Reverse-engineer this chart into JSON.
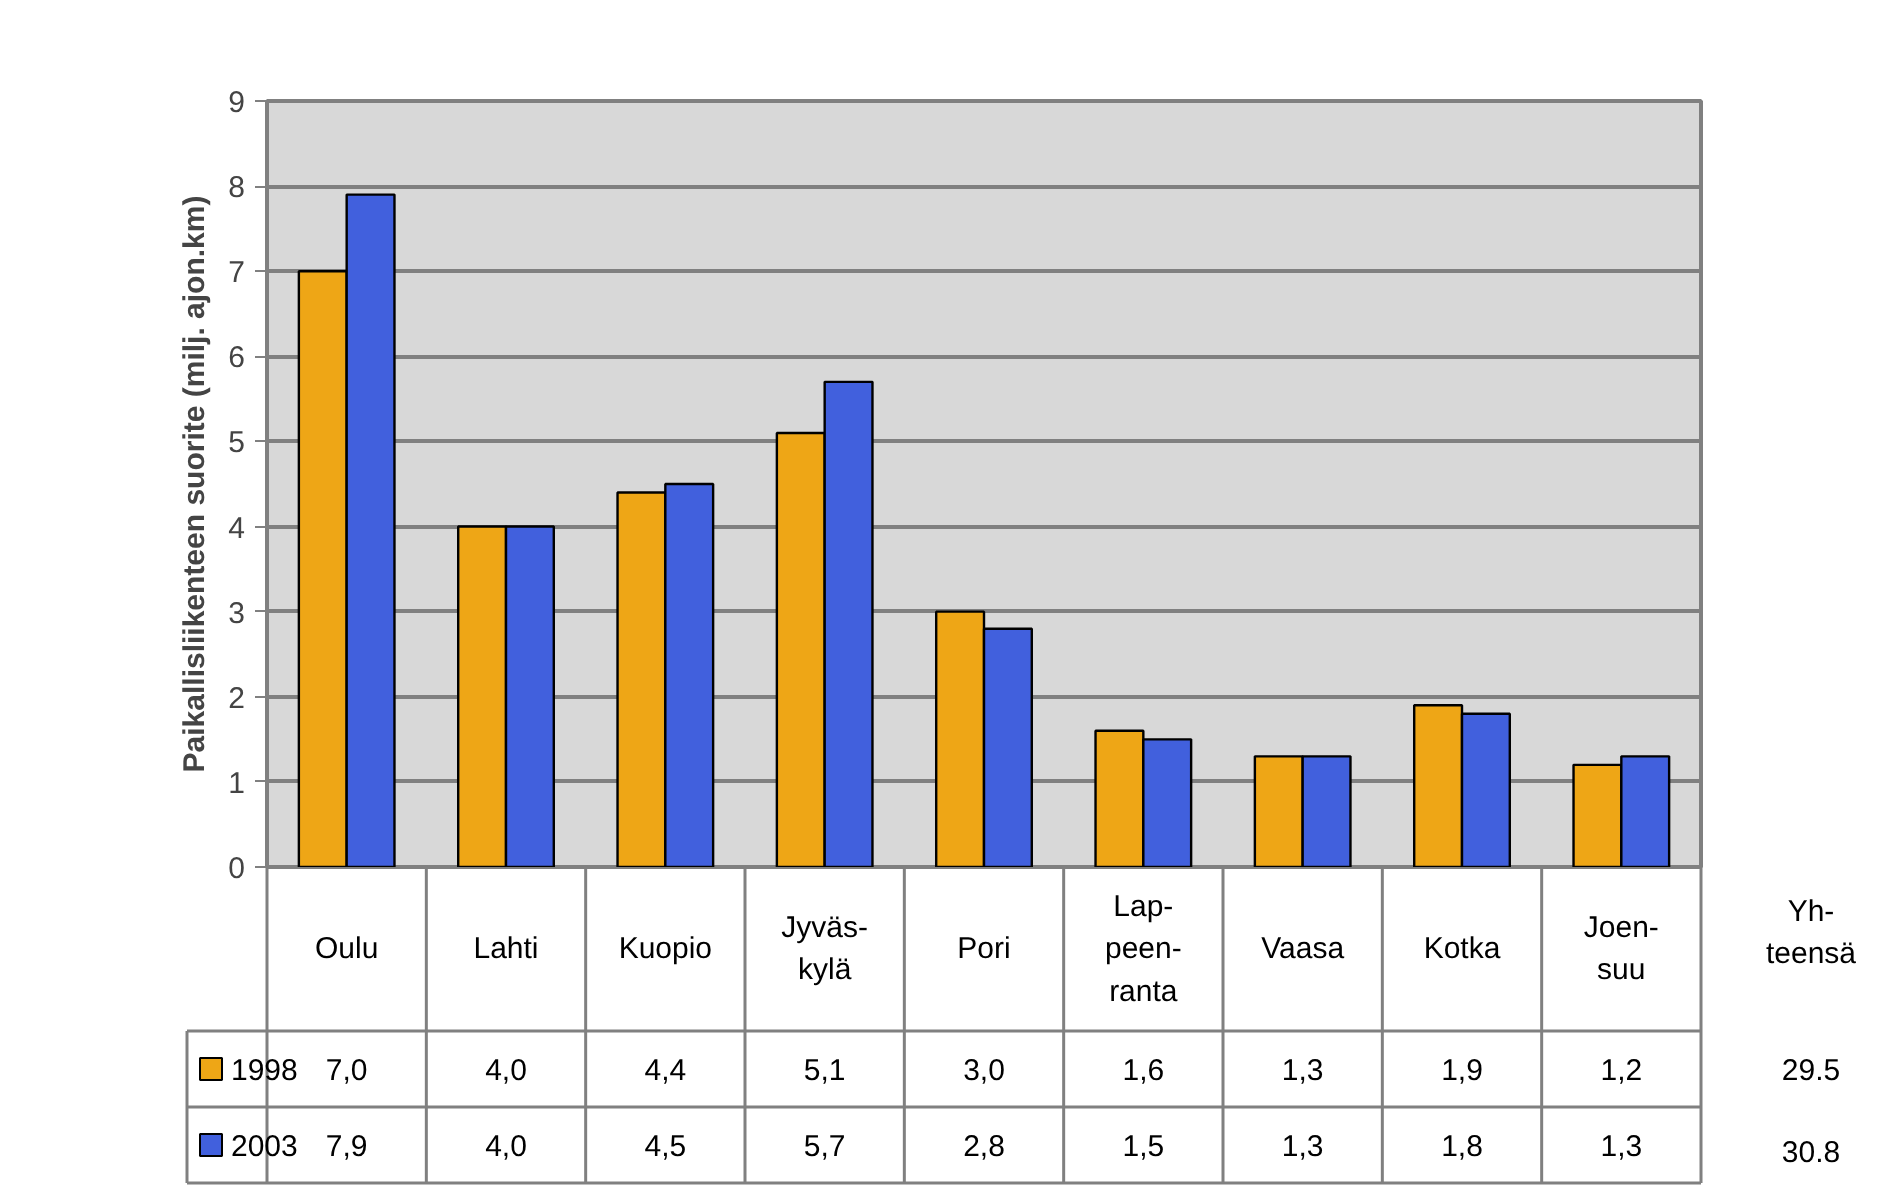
{
  "chart_data": {
    "type": "bar",
    "ylabel": "Paikallisliikenteen suorite (milj. ajon.km)",
    "categories": [
      "Oulu",
      "Lahti",
      "Kuopio",
      "Jyväs-\nkylä",
      "Pori",
      "Lap-\npeen-\nranta",
      "Vaasa",
      "Kotka",
      "Joen-\nsuu"
    ],
    "series": [
      {
        "name": "1998",
        "color": "#eea616",
        "values": [
          7.0,
          4.0,
          4.4,
          5.1,
          3.0,
          1.6,
          1.3,
          1.9,
          1.2
        ],
        "value_labels": [
          "7,0",
          "4,0",
          "4,4",
          "5,1",
          "3,0",
          "1,6",
          "1,3",
          "1,9",
          "1,2"
        ]
      },
      {
        "name": "2003",
        "color": "#4160dd",
        "values": [
          7.9,
          4.0,
          4.5,
          5.7,
          2.8,
          1.5,
          1.3,
          1.8,
          1.3
        ],
        "value_labels": [
          "7,9",
          "4,0",
          "4,5",
          "5,7",
          "2,8",
          "1,5",
          "1,3",
          "1,8",
          "1,3"
        ]
      }
    ],
    "ylim": [
      0,
      9
    ],
    "yticks": [
      0,
      1,
      2,
      3,
      4,
      5,
      6,
      7,
      8,
      9
    ],
    "grid": "y",
    "legend": "bottom left",
    "annotations": [
      "Yh-\nteensä",
      "29.5",
      "30.8"
    ]
  }
}
